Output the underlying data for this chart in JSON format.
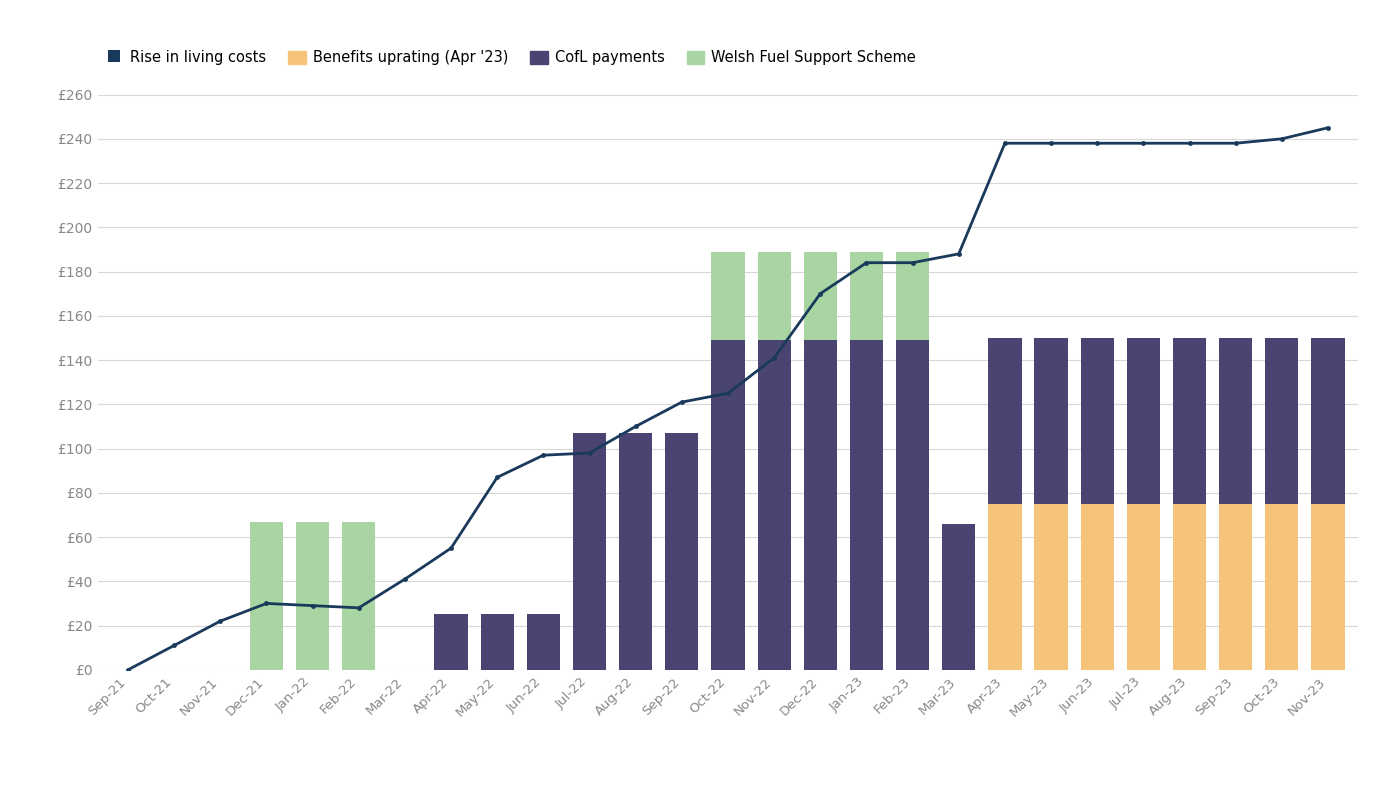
{
  "categories": [
    "Sep-21",
    "Oct-21",
    "Nov-21",
    "Dec-21",
    "Jan-22",
    "Feb-22",
    "Mar-22",
    "Apr-22",
    "May-22",
    "Jun-22",
    "Jul-22",
    "Aug-22",
    "Sep-22",
    "Oct-22",
    "Nov-22",
    "Dec-22",
    "Jan-23",
    "Feb-23",
    "Mar-23",
    "Apr-23",
    "May-23",
    "Jun-23",
    "Jul-23",
    "Aug-23",
    "Sep-23",
    "Oct-23",
    "Nov-23"
  ],
  "line_values": [
    0,
    11,
    22,
    30,
    29,
    28,
    41,
    55,
    87,
    97,
    98,
    110,
    121,
    125,
    141,
    170,
    184,
    184,
    188,
    238,
    238,
    238,
    238,
    238,
    238,
    240,
    245
  ],
  "welsh_fuel_bottom": [
    0,
    0,
    0,
    67,
    67,
    67,
    0,
    0,
    0,
    0,
    0,
    0,
    0,
    0,
    0,
    0,
    0,
    0,
    0,
    0,
    0,
    0,
    0,
    0,
    0,
    0,
    0
  ],
  "benefits_bottom": [
    0,
    0,
    0,
    0,
    0,
    0,
    0,
    0,
    0,
    0,
    0,
    0,
    0,
    0,
    0,
    0,
    0,
    0,
    0,
    75,
    75,
    75,
    75,
    75,
    75,
    75,
    75
  ],
  "cofl_mid": [
    0,
    0,
    0,
    0,
    0,
    0,
    0,
    25,
    25,
    25,
    107,
    107,
    107,
    149,
    149,
    149,
    149,
    149,
    66,
    75,
    75,
    75,
    75,
    75,
    75,
    75,
    75
  ],
  "welsh_fuel_top": [
    0,
    0,
    0,
    0,
    0,
    0,
    0,
    0,
    0,
    0,
    0,
    0,
    0,
    40,
    40,
    40,
    40,
    40,
    0,
    0,
    0,
    0,
    0,
    0,
    0,
    0,
    0
  ],
  "bg_color": "#ffffff",
  "plot_bg_color": "#ffffff",
  "line_color": "#1a3a5c",
  "cofl_color": "#4a4472",
  "welsh_fuel_color": "#a8d5a2",
  "benefits_color": "#f5c47a",
  "grid_color": "#d8d8d8",
  "tick_color": "#888888",
  "ylim_max": 260,
  "ytick_step": 20,
  "bar_width": 0.72
}
